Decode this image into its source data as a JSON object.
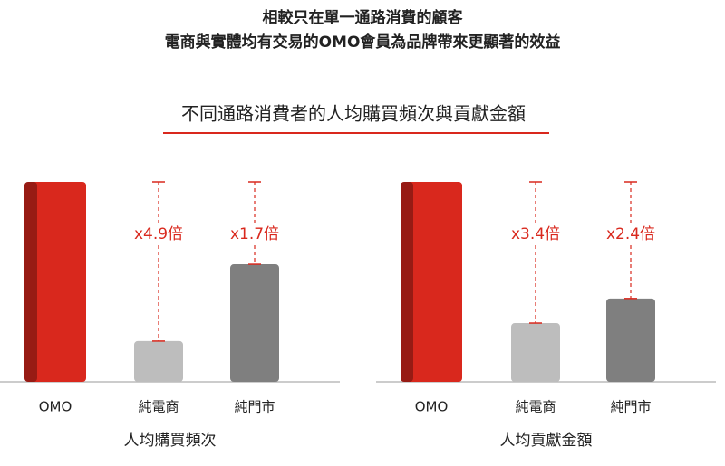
{
  "header": {
    "title_lines": [
      "相較只在單一通路消費的顧客",
      "電商與實體均有交易的OMO會員為品牌帶來更顯著的效益"
    ]
  },
  "section_title": "不同通路消費者的人均購買頻次與貢獻金額",
  "chart_data": [
    {
      "type": "bar",
      "x_label": "人均購買頻次",
      "categories": [
        "OMO",
        "純電商",
        "純門市"
      ],
      "values": [
        100,
        20.4,
        58.8
      ],
      "gap_labels": [
        null,
        "x4.9倍",
        "x1.7倍"
      ],
      "colors": [
        "#d9281d",
        "#bdbdbd",
        "#7f7f7f"
      ],
      "ylim": [
        0,
        100
      ]
    },
    {
      "type": "bar",
      "x_label": "人均貢獻金額",
      "categories": [
        "OMO",
        "純電商",
        "純門市"
      ],
      "values": [
        100,
        29.4,
        41.7
      ],
      "gap_labels": [
        null,
        "x3.4倍",
        "x2.4倍"
      ],
      "colors": [
        "#d9281d",
        "#bdbdbd",
        "#7f7f7f"
      ],
      "ylim": [
        0,
        100
      ]
    }
  ]
}
